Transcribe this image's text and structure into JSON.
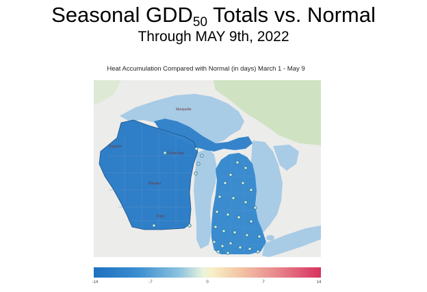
{
  "header": {
    "title_main": "Seasonal GDD",
    "title_sub": "50",
    "title_tail": " Totals vs. Normal",
    "subtitle": "Through MAY 9th, 2022"
  },
  "map": {
    "title": "Heat Accumulation Compared with Normal (in days) March 1 - May 9",
    "labels": {
      "superior_city": "Superior",
      "wausau_city": "Wausau",
      "green_bay_city": "Green Bay",
      "marquette_city": "Marquette",
      "stevens_point": "Point"
    },
    "colors": {
      "below_normal": "#2f7ec8",
      "lake_water": "#a8cbe6",
      "land_background": "#ececea",
      "canada_green": "#cfe3c3",
      "station_marker": "#cfeeda"
    }
  },
  "colorbar": {
    "ticks": [
      "-14",
      "-7",
      "0",
      "7",
      "14"
    ]
  }
}
